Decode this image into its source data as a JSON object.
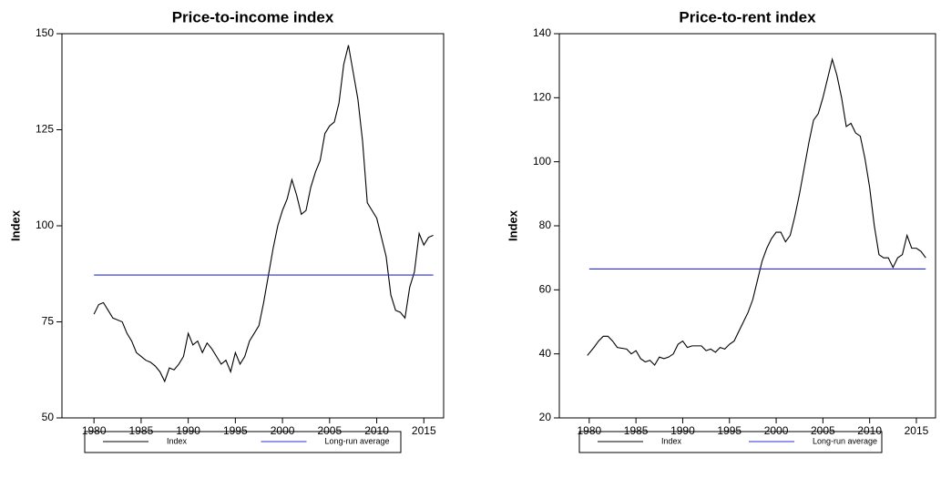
{
  "chart_data": [
    {
      "type": "line",
      "title": "Price-to-income index",
      "y_label": "Index",
      "xlim": [
        1976.6,
        2017.1
      ],
      "xticks": [
        1980,
        1985,
        1990,
        1995,
        2000,
        2005,
        2010,
        2015
      ],
      "ylim": [
        50,
        150
      ],
      "yticks": [
        50,
        75,
        100,
        125,
        150
      ],
      "series": [
        {
          "name": "Index",
          "color": "#000000",
          "x": [
            1980,
            1980.5,
            1981,
            1981.5,
            1982,
            1983,
            1983.5,
            1984,
            1984.5,
            1985,
            1985.5,
            1986,
            1986.5,
            1987,
            1987.5,
            1988,
            1988.5,
            1989,
            1989.5,
            1990,
            1990.5,
            1991,
            1991.5,
            1992,
            1992.5,
            1993,
            1993.5,
            1994,
            1994.5,
            1995,
            1995.5,
            1996,
            1996.5,
            1997,
            1997.5,
            1998,
            1998.5,
            1999,
            1999.5,
            2000,
            2000.5,
            2001,
            2001.5,
            2002,
            2002.5,
            2003,
            2003.5,
            2004,
            2004.5,
            2005,
            2005.5,
            2006,
            2006.5,
            2007,
            2007.5,
            2008,
            2008.5,
            2009,
            2009.5,
            2010,
            2010.5,
            2011,
            2011.5,
            2012,
            2012.5,
            2013,
            2013.5,
            2014,
            2014.5,
            2015,
            2015.5,
            2016
          ],
          "values": [
            77,
            79.5,
            80,
            78,
            76,
            75,
            72,
            70,
            67,
            66,
            65,
            64.5,
            63.5,
            62,
            59.5,
            63,
            62.5,
            64,
            66,
            72,
            69,
            70,
            67,
            69.5,
            68,
            66,
            64,
            65,
            62,
            67,
            64,
            66,
            70,
            72,
            74,
            80,
            87,
            94,
            100,
            104,
            107,
            112,
            108,
            103,
            104,
            110,
            114,
            117,
            124,
            126,
            127,
            132,
            142,
            147,
            140,
            133,
            122,
            106,
            104,
            102,
            97,
            92,
            82,
            78,
            77.5,
            76,
            84,
            88,
            98,
            95,
            97,
            97.5
          ]
        },
        {
          "name": "Long-run average",
          "color": "#2b2bd6",
          "x": [
            1980,
            2016
          ],
          "values": [
            87.2,
            87.2
          ]
        }
      ]
    },
    {
      "type": "line",
      "title": "Price-to-rent index",
      "y_label": "Index",
      "xlim": [
        1976.8,
        2017.05
      ],
      "xticks": [
        1980,
        1985,
        1990,
        1995,
        2000,
        2005,
        2010,
        2015
      ],
      "ylim": [
        20,
        140
      ],
      "yticks": [
        20,
        40,
        60,
        80,
        100,
        120,
        140
      ],
      "series": [
        {
          "name": "Index",
          "color": "#000000",
          "x": [
            1979.8,
            1980.5,
            1981,
            1981.5,
            1982,
            1982.5,
            1983,
            1984,
            1984.5,
            1985,
            1985.5,
            1986,
            1986.5,
            1987,
            1987.5,
            1988,
            1988.5,
            1989,
            1989.5,
            1990,
            1990.5,
            1991,
            1992,
            1992.5,
            1993,
            1993.5,
            1994,
            1994.5,
            1995,
            1995.5,
            1996,
            1996.5,
            1997,
            1997.5,
            1998,
            1998.5,
            1999,
            1999.5,
            2000,
            2000.5,
            2001,
            2001.5,
            2002,
            2002.5,
            2003,
            2003.5,
            2004,
            2004.5,
            2005,
            2005.5,
            2006,
            2006.5,
            2007,
            2007.5,
            2008,
            2008.5,
            2009,
            2009.5,
            2010,
            2010.5,
            2011,
            2011.5,
            2012,
            2012.5,
            2013,
            2013.5,
            2014,
            2014.5,
            2015,
            2015.5,
            2016
          ],
          "values": [
            39.5,
            42,
            44,
            45.5,
            45.5,
            44,
            42,
            41.5,
            40,
            41,
            38.5,
            37.5,
            38,
            36.5,
            39,
            38.5,
            39,
            40,
            43,
            44,
            42,
            42.5,
            42.5,
            41,
            41.5,
            40.5,
            42,
            41.5,
            43,
            44,
            47,
            50,
            53,
            57,
            63,
            69,
            73,
            76,
            78,
            78,
            75,
            77,
            83,
            90,
            98,
            106,
            113,
            115,
            120,
            126,
            132,
            127,
            120,
            111,
            112,
            109,
            108,
            101,
            92,
            80,
            71,
            70,
            70,
            67,
            70,
            71,
            77,
            73,
            73,
            72,
            70
          ]
        },
        {
          "name": "Long-run average",
          "color": "#2b2bd6",
          "x": [
            1980,
            2016
          ],
          "values": [
            66.5,
            66.5
          ]
        }
      ]
    }
  ]
}
